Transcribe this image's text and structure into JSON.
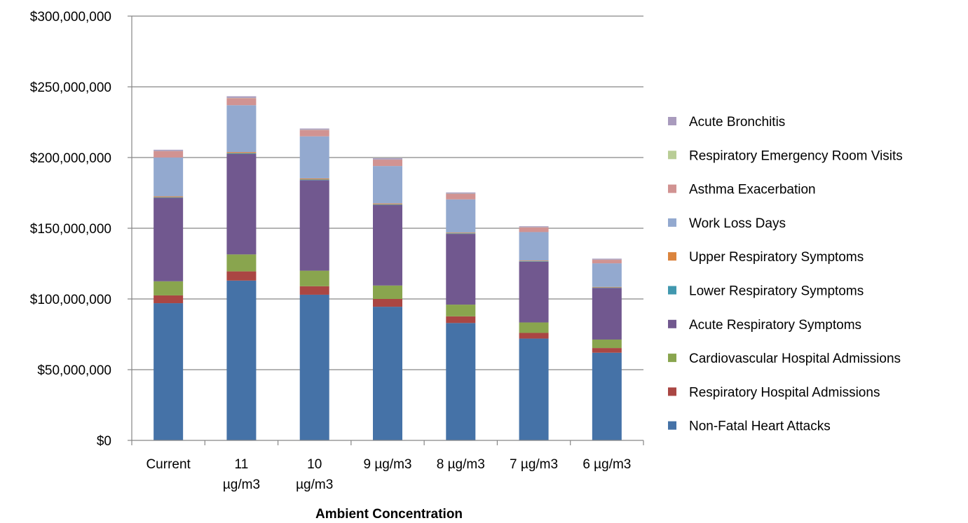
{
  "chart_data": {
    "type": "bar",
    "stacked": true,
    "title": "",
    "xlabel": "Ambient Concentration",
    "ylabel": "",
    "ylim": [
      0,
      300000000
    ],
    "y_ticks": [
      0,
      50000000,
      100000000,
      150000000,
      200000000,
      250000000,
      300000000
    ],
    "y_tick_labels": [
      "$0",
      "$50,000,000",
      "$100,000,000",
      "$150,000,000",
      "$200,000,000",
      "$250,000,000",
      "$300,000,000"
    ],
    "grid": true,
    "legend_position": "right",
    "categories": [
      "Current",
      "11 µg/m3",
      "10 µg/m3",
      "9 µg/m3",
      "8 µg/m3",
      "7 µg/m3",
      "6 µg/m3"
    ],
    "category_label_lines": [
      [
        "Current"
      ],
      [
        "11",
        "µg/m3"
      ],
      [
        "10",
        "µg/m3"
      ],
      [
        "9 µg/m3"
      ],
      [
        "8 µg/m3"
      ],
      [
        "7 µg/m3"
      ],
      [
        "6 µg/m3"
      ]
    ],
    "series": [
      {
        "name": "Non-Fatal Heart Attacks",
        "color": "#4572A7",
        "values": [
          97000000,
          113000000,
          103000000,
          94500000,
          83000000,
          72000000,
          62000000
        ]
      },
      {
        "name": "Respiratory Hospital Admissions",
        "color": "#AA4643",
        "values": [
          5500000,
          6500000,
          6000000,
          5500000,
          4700000,
          4000000,
          3300000
        ]
      },
      {
        "name": "Cardiovascular Hospital Admissions",
        "color": "#89A54E",
        "values": [
          10000000,
          12000000,
          11000000,
          9500000,
          8300000,
          7400000,
          6000000
        ]
      },
      {
        "name": "Acute Respiratory Symptoms",
        "color": "#71588F",
        "values": [
          59000000,
          71000000,
          64000000,
          57000000,
          50000000,
          43000000,
          36500000
        ]
      },
      {
        "name": "Lower Respiratory Symptoms",
        "color": "#4198AF",
        "values": [
          400000,
          500000,
          500000,
          400000,
          400000,
          300000,
          300000
        ]
      },
      {
        "name": "Upper Respiratory Symptoms",
        "color": "#DB843D",
        "values": [
          600000,
          700000,
          700000,
          600000,
          500000,
          400000,
          400000
        ]
      },
      {
        "name": "Work Loss Days",
        "color": "#93A9CF",
        "values": [
          27500000,
          33300000,
          29800000,
          26500000,
          23500000,
          20200000,
          16700000
        ]
      },
      {
        "name": "Asthma Exacerbation",
        "color": "#D19392",
        "values": [
          4500000,
          5000000,
          4500000,
          4500000,
          4000000,
          3300000,
          2500000
        ]
      },
      {
        "name": "Respiratory Emergency Room Visits",
        "color": "#B9CD96",
        "values": [
          100000,
          150000,
          150000,
          100000,
          100000,
          100000,
          100000
        ]
      },
      {
        "name": "Acute Bronchitis",
        "color": "#A99BBD",
        "values": [
          900000,
          1150000,
          850000,
          900000,
          800000,
          700000,
          700000
        ]
      }
    ]
  }
}
